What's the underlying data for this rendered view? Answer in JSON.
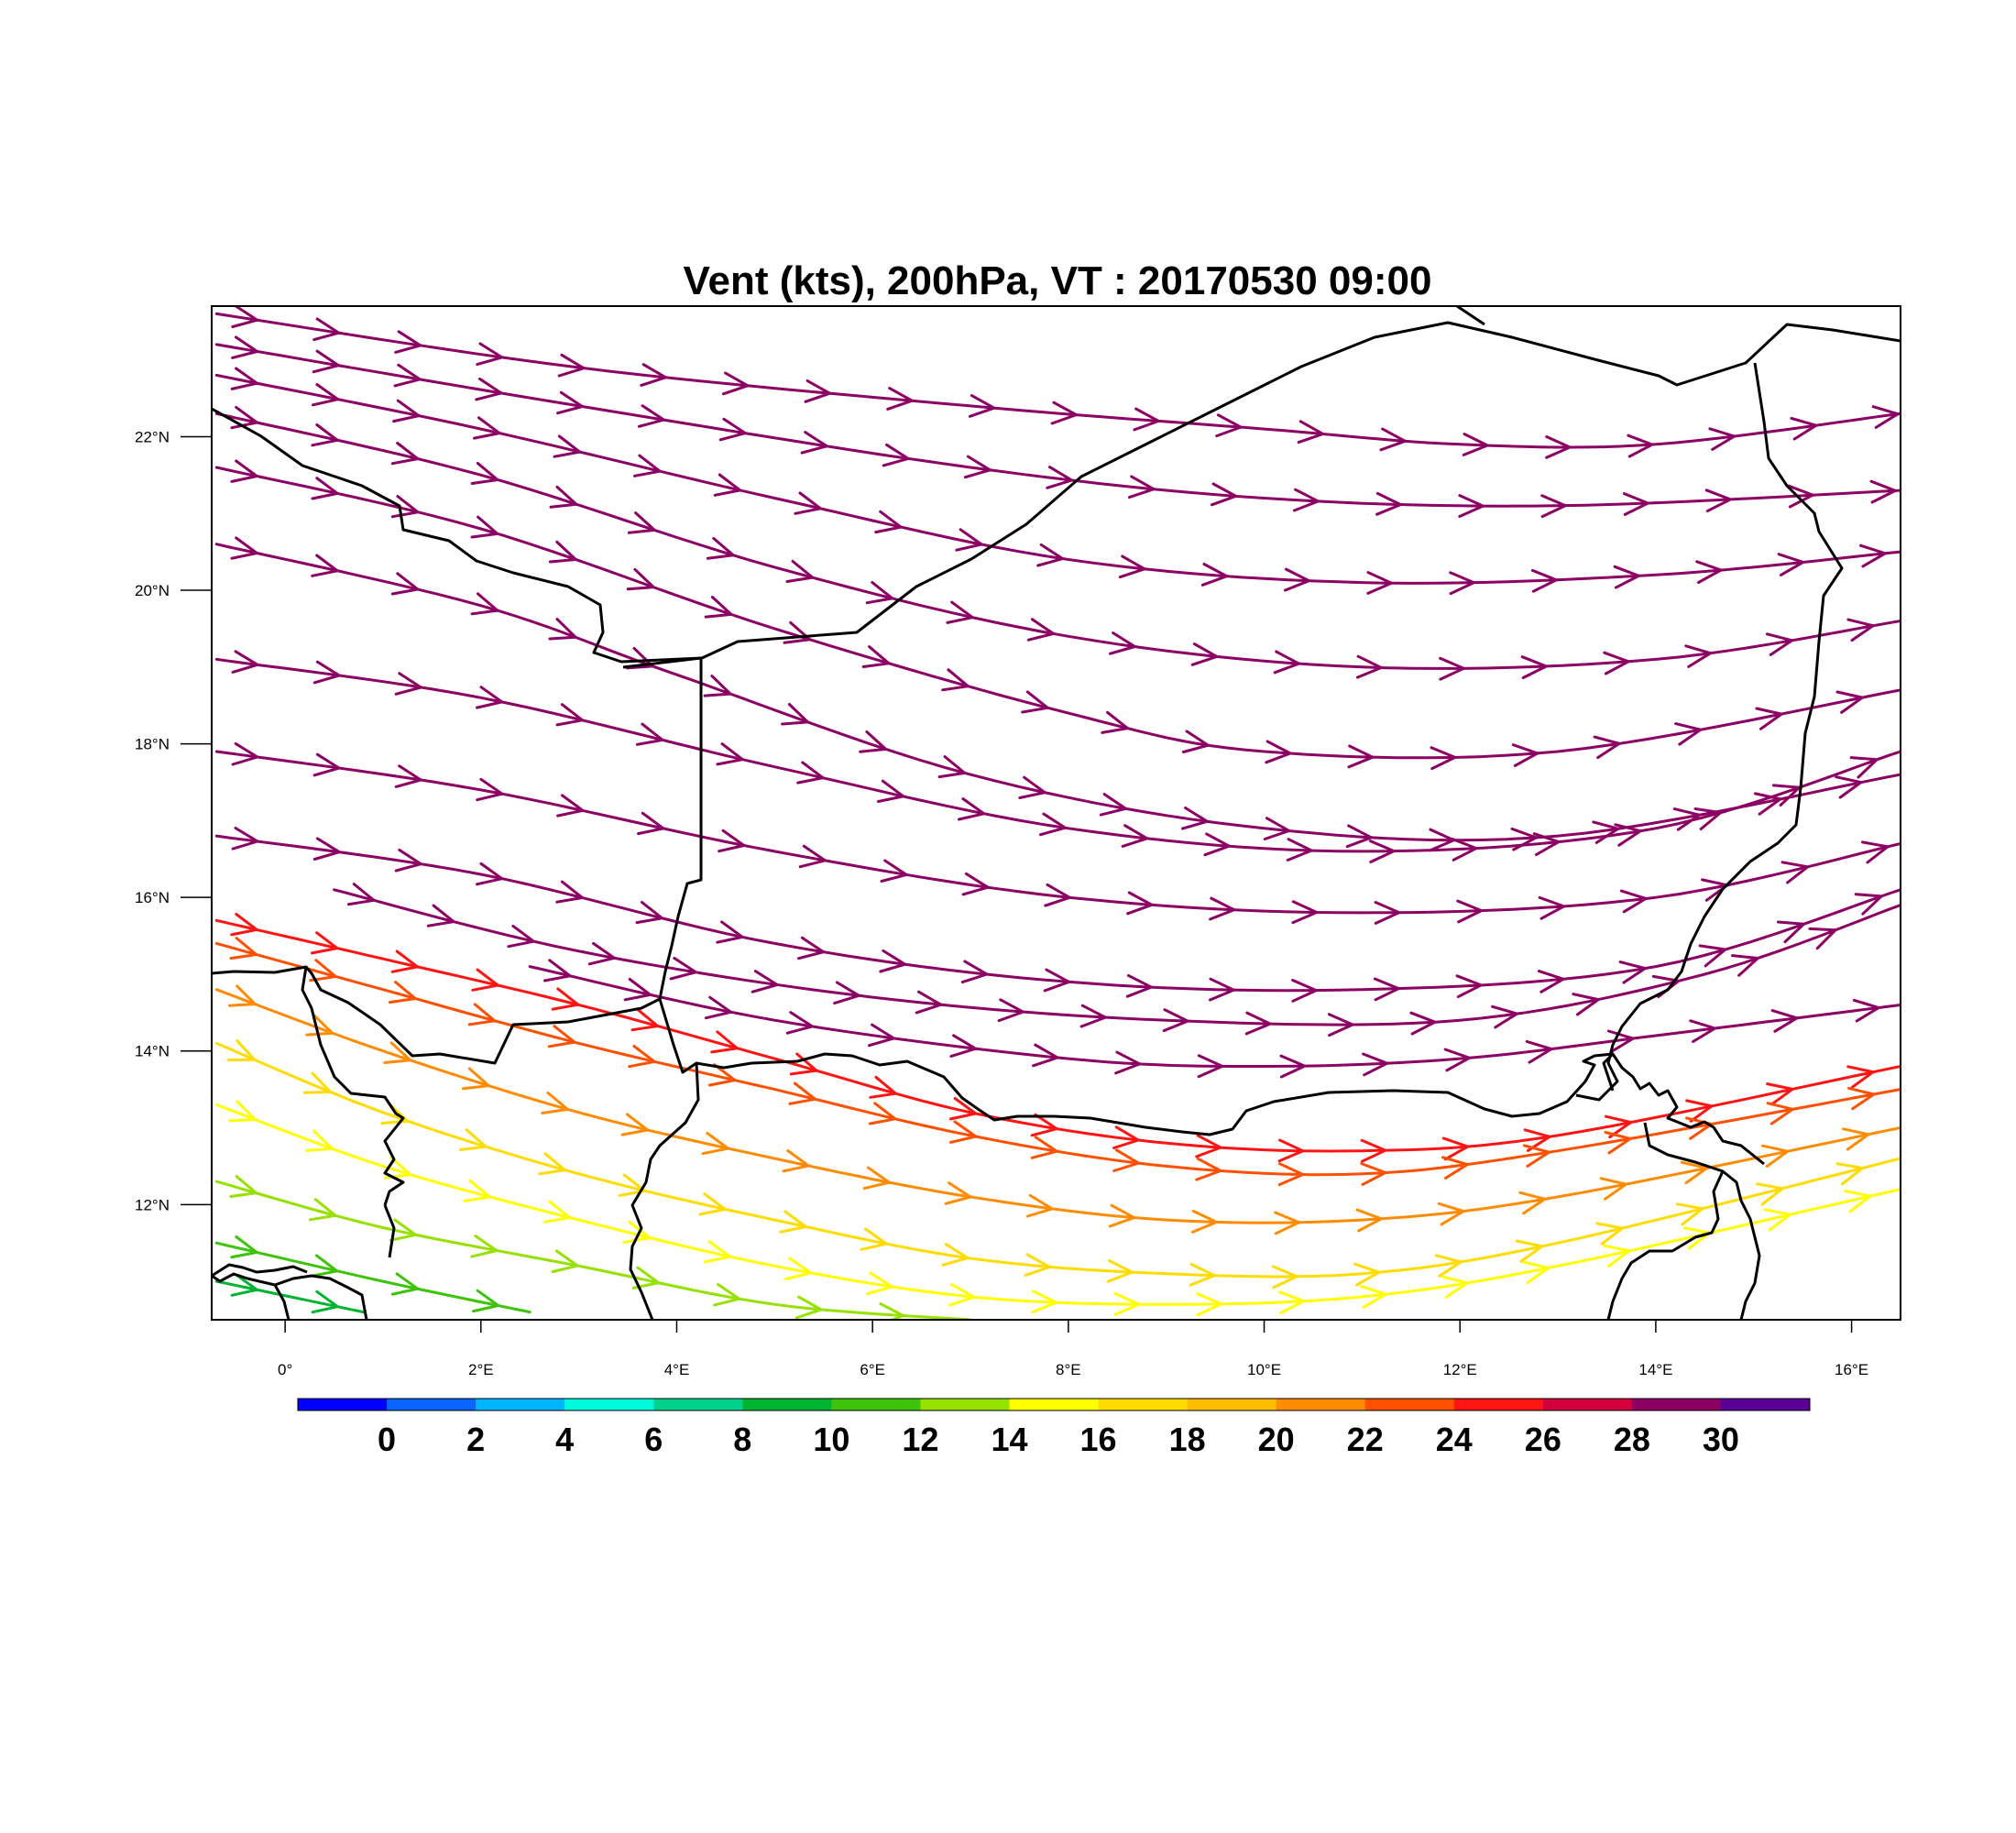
{
  "title": "Vent (kts), 200hPa, VT : 20170530  09:00",
  "map": {
    "lon_range": [
      -0.75,
      16.5
    ],
    "lat_range": [
      10.5,
      23.7
    ],
    "lon_ticks": [
      0,
      2,
      4,
      6,
      8,
      10,
      12,
      14,
      16
    ],
    "lon_tick_labels": [
      "0°",
      "2°E",
      "4°E",
      "6°E",
      "8°E",
      "10°E",
      "12°E",
      "14°E",
      "16°E"
    ],
    "lat_ticks": [
      12,
      14,
      16,
      18,
      20,
      22
    ],
    "lat_tick_labels": [
      "12°N",
      "14°N",
      "16°N",
      "18°N",
      "20°N",
      "22°N"
    ],
    "background": "#ffffff",
    "border_color": "#000000"
  },
  "colorbar": {
    "labels": [
      "0",
      "2",
      "4",
      "6",
      "8",
      "10",
      "12",
      "14",
      "16",
      "18",
      "20",
      "22",
      "24",
      "26",
      "28",
      "30"
    ],
    "colors": [
      "#0000ff",
      "#0a64ff",
      "#00b4ff",
      "#00fadc",
      "#00d28c",
      "#00b432",
      "#3cc30a",
      "#96e100",
      "#ffff00",
      "#ffdc00",
      "#ffbe00",
      "#ff8c00",
      "#ff5000",
      "#ff1414",
      "#d2003c",
      "#8c0064",
      "#5a0096"
    ],
    "orientation": "horizontal"
  },
  "chart_data": {
    "type": "streamline",
    "variable": "200 hPa wind speed (kts)",
    "flow_direction": "west-to-east, curving; cyclonic bend over central Niger/Chad",
    "streamlines": [
      {
        "speed_kts": 31,
        "points": [
          [
            -0.7,
            23.6
          ],
          [
            3,
            22.9
          ],
          [
            7,
            22.4
          ],
          [
            10,
            22.1
          ],
          [
            12,
            21.9
          ],
          [
            14,
            21.9
          ],
          [
            16.5,
            22.3
          ]
        ]
      },
      {
        "speed_kts": 31,
        "points": [
          [
            -0.7,
            23.2
          ],
          [
            3,
            22.4
          ],
          [
            7,
            21.6
          ],
          [
            10,
            21.2
          ],
          [
            13,
            21.1
          ],
          [
            16.5,
            21.3
          ]
        ]
      },
      {
        "speed_kts": 31,
        "points": [
          [
            -0.7,
            22.8
          ],
          [
            2,
            22.1
          ],
          [
            5,
            21.2
          ],
          [
            8,
            20.4
          ],
          [
            11,
            20.1
          ],
          [
            14,
            20.2
          ],
          [
            16.5,
            20.5
          ]
        ]
      },
      {
        "speed_kts": 31,
        "points": [
          [
            -0.7,
            22.3
          ],
          [
            2,
            21.5
          ],
          [
            5,
            20.3
          ],
          [
            8,
            19.4
          ],
          [
            11,
            19.0
          ],
          [
            14,
            19.1
          ],
          [
            16.5,
            19.6
          ]
        ]
      },
      {
        "speed_kts": 31,
        "points": [
          [
            -0.7,
            21.6
          ],
          [
            2,
            20.8
          ],
          [
            5,
            19.5
          ],
          [
            8,
            18.4
          ],
          [
            10,
            17.9
          ],
          [
            13,
            17.9
          ],
          [
            16.5,
            18.7
          ]
        ]
      },
      {
        "speed_kts": 31,
        "points": [
          [
            -0.7,
            20.6
          ],
          [
            2,
            19.8
          ],
          [
            4,
            18.9
          ],
          [
            7,
            17.6
          ],
          [
            10,
            16.9
          ],
          [
            13,
            16.8
          ],
          [
            16.5,
            17.6
          ]
        ]
      },
      {
        "speed_kts": 31,
        "points": [
          [
            -0.7,
            19.1
          ],
          [
            2,
            18.6
          ],
          [
            5,
            17.7
          ],
          [
            8,
            16.9
          ],
          [
            11,
            16.6
          ],
          [
            14,
            16.9
          ],
          [
            16.5,
            17.9
          ]
        ]
      },
      {
        "speed_kts": 31,
        "points": [
          [
            -0.7,
            17.9
          ],
          [
            2,
            17.4
          ],
          [
            5,
            16.6
          ],
          [
            8,
            16.0
          ],
          [
            11,
            15.8
          ],
          [
            14,
            16.0
          ],
          [
            16.5,
            16.7
          ]
        ]
      },
      {
        "speed_kts": 31,
        "points": [
          [
            -0.7,
            16.8
          ],
          [
            2,
            16.3
          ],
          [
            5,
            15.4
          ],
          [
            8,
            14.9
          ],
          [
            11,
            14.8
          ],
          [
            14,
            15.1
          ],
          [
            16.5,
            16.1
          ]
        ]
      },
      {
        "speed_kts": 31,
        "points": [
          [
            0.5,
            16.1
          ],
          [
            3,
            15.3
          ],
          [
            6,
            14.7
          ],
          [
            9,
            14.4
          ],
          [
            12,
            14.4
          ],
          [
            14.5,
            15.0
          ],
          [
            16.5,
            15.9
          ]
        ]
      },
      {
        "speed_kts": 31,
        "points": [
          [
            2.5,
            15.1
          ],
          [
            5,
            14.4
          ],
          [
            8,
            13.9
          ],
          [
            10,
            13.8
          ],
          [
            12,
            13.9
          ],
          [
            14,
            14.2
          ],
          [
            16.5,
            14.6
          ]
        ]
      },
      {
        "speed_kts": 27,
        "points": [
          [
            -0.7,
            15.7
          ],
          [
            1,
            15.2
          ],
          [
            3,
            14.6
          ],
          [
            5,
            13.9
          ],
          [
            7,
            13.2
          ],
          [
            9,
            12.8
          ],
          [
            11,
            12.7
          ],
          [
            13,
            12.9
          ],
          [
            16.5,
            13.8
          ]
        ]
      },
      {
        "speed_kts": 25,
        "points": [
          [
            -0.7,
            15.4
          ],
          [
            1,
            14.8
          ],
          [
            3,
            14.1
          ],
          [
            5,
            13.5
          ],
          [
            7,
            12.9
          ],
          [
            9,
            12.5
          ],
          [
            11,
            12.4
          ],
          [
            13,
            12.7
          ],
          [
            16.5,
            13.5
          ]
        ]
      },
      {
        "speed_kts": 22,
        "points": [
          [
            -0.7,
            14.8
          ],
          [
            1,
            14.0
          ],
          [
            3,
            13.2
          ],
          [
            5,
            12.6
          ],
          [
            7,
            12.1
          ],
          [
            9,
            11.8
          ],
          [
            11,
            11.8
          ],
          [
            13,
            12.1
          ],
          [
            16.5,
            13.0
          ]
        ]
      },
      {
        "speed_kts": 19,
        "points": [
          [
            -0.7,
            14.1
          ],
          [
            1,
            13.2
          ],
          [
            3,
            12.4
          ],
          [
            5,
            11.8
          ],
          [
            7,
            11.3
          ],
          [
            9,
            11.1
          ],
          [
            11,
            11.1
          ],
          [
            13,
            11.5
          ],
          [
            16.5,
            12.6
          ]
        ]
      },
      {
        "speed_kts": 17,
        "points": [
          [
            -0.7,
            13.3
          ],
          [
            1,
            12.5
          ],
          [
            3,
            11.8
          ],
          [
            5,
            11.2
          ],
          [
            7,
            10.8
          ],
          [
            9,
            10.7
          ],
          [
            11,
            10.8
          ],
          [
            13,
            11.2
          ],
          [
            16.5,
            12.2
          ]
        ]
      },
      {
        "speed_kts": 15,
        "points": [
          [
            -0.7,
            12.3
          ],
          [
            1,
            11.7
          ],
          [
            3,
            11.2
          ],
          [
            5,
            10.7
          ],
          [
            7,
            10.5
          ]
        ]
      },
      {
        "speed_kts": 13,
        "points": [
          [
            -0.7,
            11.5
          ],
          [
            1,
            11.0
          ],
          [
            2.5,
            10.6
          ]
        ]
      },
      {
        "speed_kts": 11,
        "points": [
          [
            -0.7,
            11.0
          ],
          [
            0.8,
            10.6
          ]
        ]
      }
    ]
  }
}
